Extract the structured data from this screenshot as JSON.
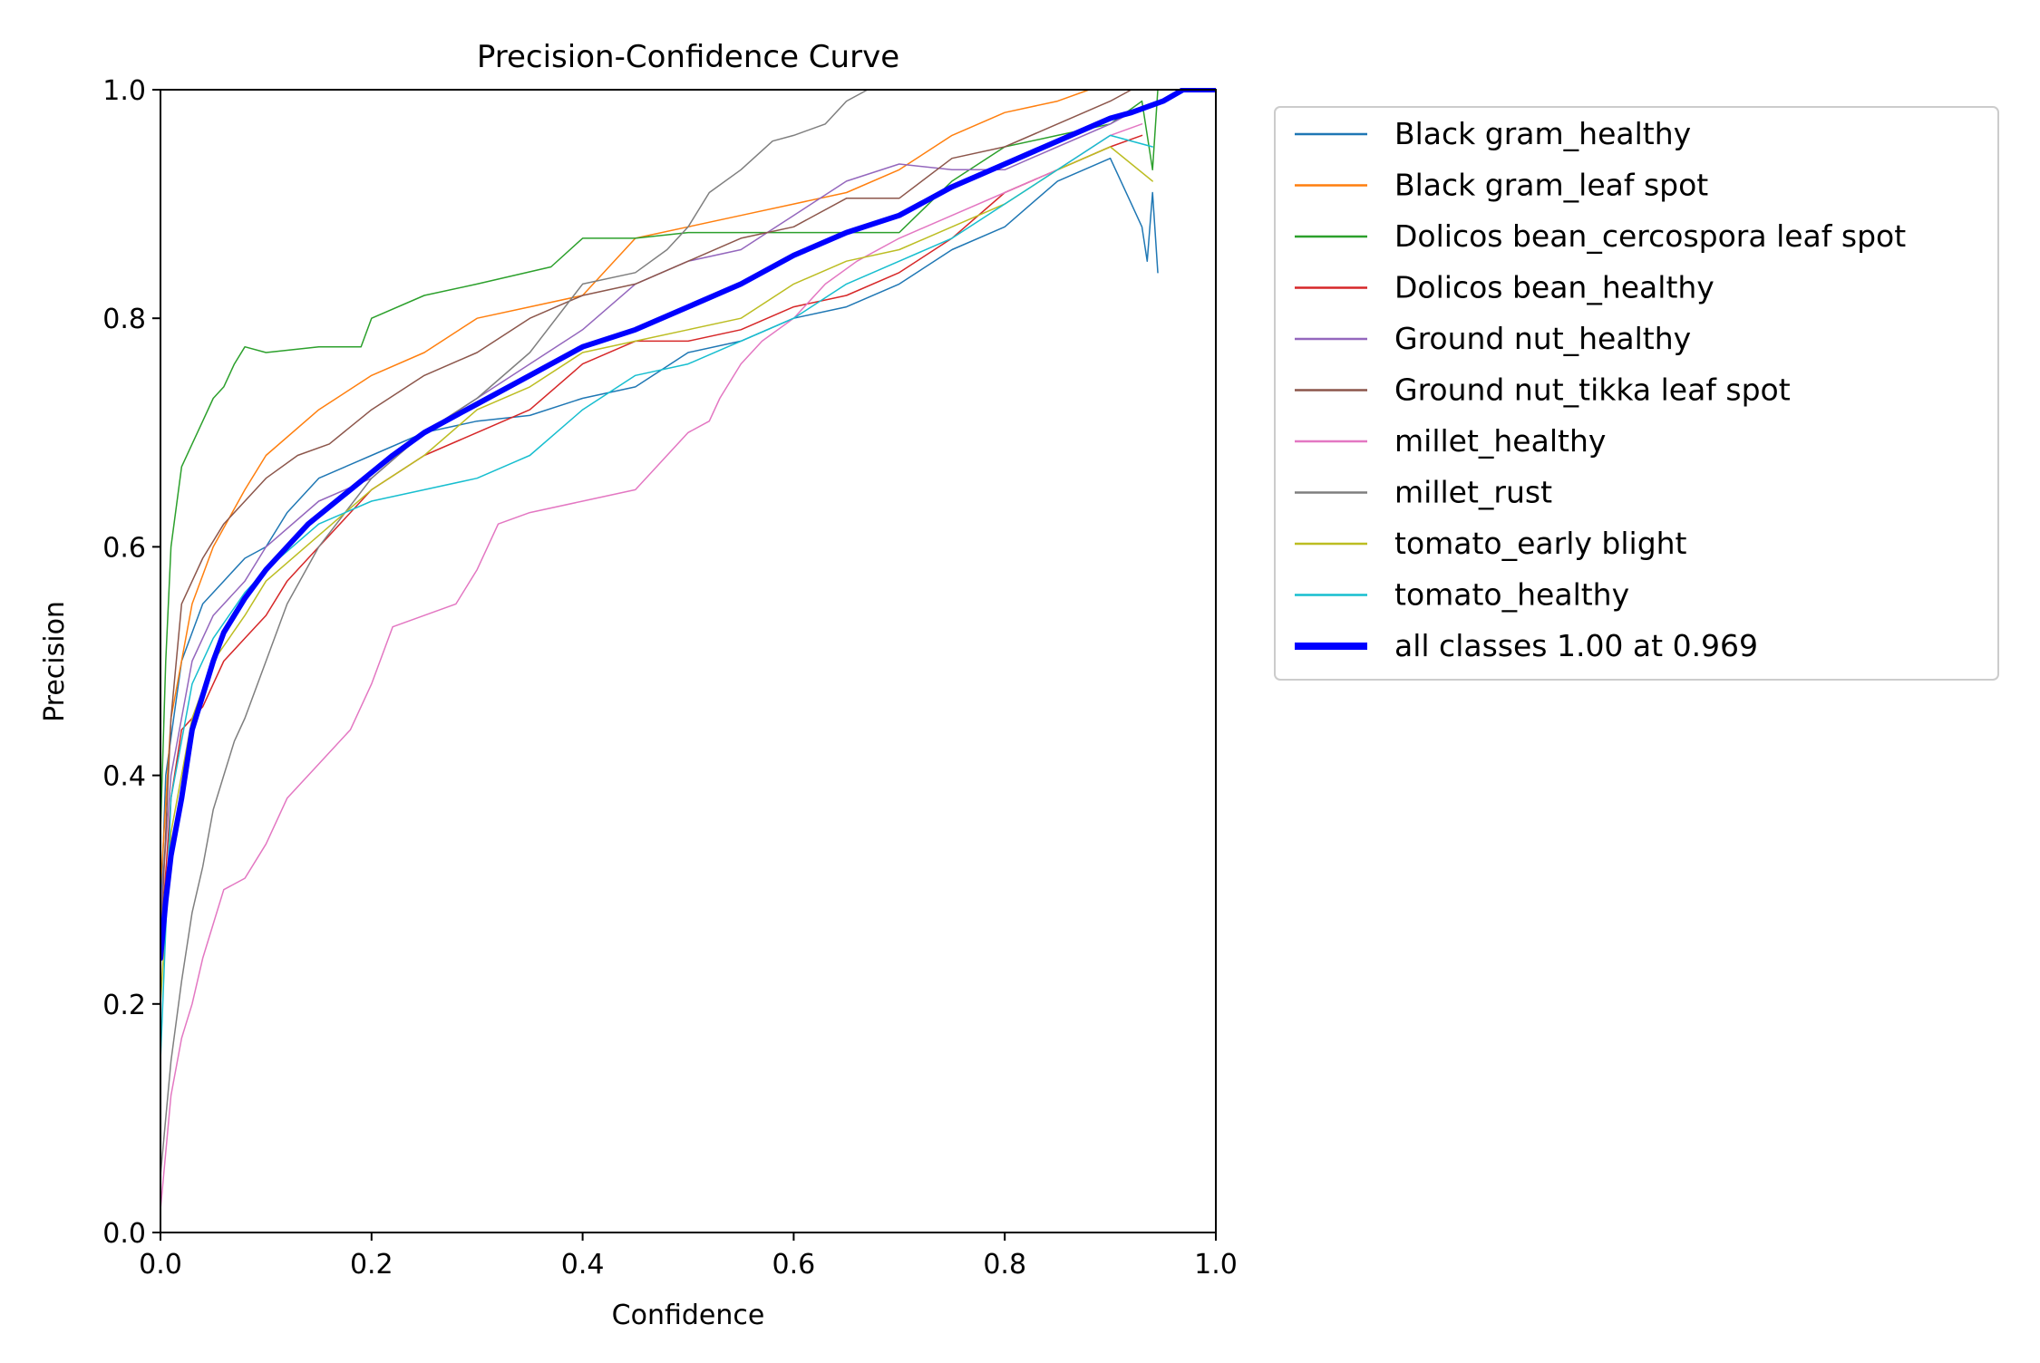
{
  "chart_data": {
    "type": "line",
    "title": "Precision-Confidence Curve",
    "xlabel": "Confidence",
    "ylabel": "Precision",
    "xlim": [
      0,
      1
    ],
    "ylim": [
      0,
      1
    ],
    "xticks": [
      "0.0",
      "0.2",
      "0.4",
      "0.6",
      "0.8",
      "1.0"
    ],
    "yticks": [
      "0.0",
      "0.2",
      "0.4",
      "0.6",
      "0.8",
      "1.0"
    ],
    "grid": false,
    "legend_position": "outside-right",
    "series": [
      {
        "name": "Black gram_healthy",
        "color": "#1f77b4",
        "width": 1.5,
        "points": [
          [
            0.0,
            0.27
          ],
          [
            0.005,
            0.4
          ],
          [
            0.02,
            0.5
          ],
          [
            0.04,
            0.55
          ],
          [
            0.06,
            0.57
          ],
          [
            0.08,
            0.59
          ],
          [
            0.1,
            0.6
          ],
          [
            0.12,
            0.63
          ],
          [
            0.15,
            0.66
          ],
          [
            0.2,
            0.68
          ],
          [
            0.25,
            0.7
          ],
          [
            0.3,
            0.71
          ],
          [
            0.35,
            0.715
          ],
          [
            0.4,
            0.73
          ],
          [
            0.45,
            0.74
          ],
          [
            0.5,
            0.77
          ],
          [
            0.55,
            0.78
          ],
          [
            0.6,
            0.8
          ],
          [
            0.65,
            0.81
          ],
          [
            0.7,
            0.83
          ],
          [
            0.75,
            0.86
          ],
          [
            0.8,
            0.88
          ],
          [
            0.85,
            0.92
          ],
          [
            0.9,
            0.94
          ],
          [
            0.92,
            0.9
          ],
          [
            0.93,
            0.88
          ],
          [
            0.935,
            0.85
          ],
          [
            0.94,
            0.91
          ],
          [
            0.945,
            0.84
          ]
        ]
      },
      {
        "name": "Black gram_leaf spot",
        "color": "#ff7f0e",
        "width": 1.5,
        "points": [
          [
            0.0,
            0.3
          ],
          [
            0.01,
            0.45
          ],
          [
            0.03,
            0.55
          ],
          [
            0.05,
            0.6
          ],
          [
            0.08,
            0.65
          ],
          [
            0.1,
            0.68
          ],
          [
            0.15,
            0.72
          ],
          [
            0.2,
            0.75
          ],
          [
            0.25,
            0.77
          ],
          [
            0.3,
            0.8
          ],
          [
            0.35,
            0.81
          ],
          [
            0.4,
            0.82
          ],
          [
            0.45,
            0.87
          ],
          [
            0.5,
            0.88
          ],
          [
            0.55,
            0.89
          ],
          [
            0.6,
            0.9
          ],
          [
            0.65,
            0.91
          ],
          [
            0.7,
            0.93
          ],
          [
            0.75,
            0.96
          ],
          [
            0.8,
            0.98
          ],
          [
            0.85,
            0.99
          ],
          [
            0.88,
            1.0
          ]
        ]
      },
      {
        "name": "Dolicos bean_cercospora leaf spot",
        "color": "#2ca02c",
        "width": 1.5,
        "points": [
          [
            0.0,
            0.35
          ],
          [
            0.005,
            0.5
          ],
          [
            0.01,
            0.6
          ],
          [
            0.02,
            0.67
          ],
          [
            0.03,
            0.69
          ],
          [
            0.04,
            0.71
          ],
          [
            0.05,
            0.73
          ],
          [
            0.06,
            0.74
          ],
          [
            0.07,
            0.76
          ],
          [
            0.08,
            0.775
          ],
          [
            0.1,
            0.77
          ],
          [
            0.15,
            0.775
          ],
          [
            0.19,
            0.775
          ],
          [
            0.2,
            0.8
          ],
          [
            0.25,
            0.82
          ],
          [
            0.3,
            0.83
          ],
          [
            0.37,
            0.845
          ],
          [
            0.4,
            0.87
          ],
          [
            0.45,
            0.87
          ],
          [
            0.5,
            0.875
          ],
          [
            0.55,
            0.875
          ],
          [
            0.6,
            0.875
          ],
          [
            0.65,
            0.875
          ],
          [
            0.7,
            0.875
          ],
          [
            0.75,
            0.92
          ],
          [
            0.8,
            0.95
          ],
          [
            0.85,
            0.96
          ],
          [
            0.9,
            0.97
          ],
          [
            0.93,
            0.99
          ],
          [
            0.94,
            0.93
          ],
          [
            0.945,
            1.0
          ]
        ]
      },
      {
        "name": "Dolicos bean_healthy",
        "color": "#d62728",
        "width": 1.5,
        "points": [
          [
            0.0,
            0.25
          ],
          [
            0.01,
            0.38
          ],
          [
            0.02,
            0.44
          ],
          [
            0.04,
            0.46
          ],
          [
            0.06,
            0.5
          ],
          [
            0.08,
            0.52
          ],
          [
            0.1,
            0.54
          ],
          [
            0.12,
            0.57
          ],
          [
            0.15,
            0.6
          ],
          [
            0.2,
            0.65
          ],
          [
            0.25,
            0.68
          ],
          [
            0.3,
            0.7
          ],
          [
            0.35,
            0.72
          ],
          [
            0.4,
            0.76
          ],
          [
            0.45,
            0.78
          ],
          [
            0.5,
            0.78
          ],
          [
            0.55,
            0.79
          ],
          [
            0.6,
            0.81
          ],
          [
            0.65,
            0.82
          ],
          [
            0.7,
            0.84
          ],
          [
            0.75,
            0.87
          ],
          [
            0.8,
            0.91
          ],
          [
            0.85,
            0.93
          ],
          [
            0.9,
            0.95
          ],
          [
            0.93,
            0.96
          ]
        ]
      },
      {
        "name": "Ground nut_healthy",
        "color": "#9467bd",
        "width": 1.5,
        "points": [
          [
            0.0,
            0.28
          ],
          [
            0.01,
            0.4
          ],
          [
            0.03,
            0.5
          ],
          [
            0.05,
            0.54
          ],
          [
            0.08,
            0.57
          ],
          [
            0.1,
            0.6
          ],
          [
            0.15,
            0.64
          ],
          [
            0.2,
            0.66
          ],
          [
            0.25,
            0.7
          ],
          [
            0.3,
            0.73
          ],
          [
            0.35,
            0.76
          ],
          [
            0.4,
            0.79
          ],
          [
            0.45,
            0.83
          ],
          [
            0.5,
            0.85
          ],
          [
            0.55,
            0.86
          ],
          [
            0.6,
            0.89
          ],
          [
            0.65,
            0.92
          ],
          [
            0.7,
            0.935
          ],
          [
            0.75,
            0.93
          ],
          [
            0.8,
            0.93
          ],
          [
            0.85,
            0.95
          ],
          [
            0.9,
            0.97
          ],
          [
            0.92,
            0.98
          ]
        ]
      },
      {
        "name": "Ground nut_tikka leaf spot",
        "color": "#8c564b",
        "width": 1.5,
        "points": [
          [
            0.0,
            0.25
          ],
          [
            0.01,
            0.45
          ],
          [
            0.02,
            0.55
          ],
          [
            0.04,
            0.59
          ],
          [
            0.06,
            0.62
          ],
          [
            0.08,
            0.64
          ],
          [
            0.1,
            0.66
          ],
          [
            0.13,
            0.68
          ],
          [
            0.16,
            0.69
          ],
          [
            0.2,
            0.72
          ],
          [
            0.25,
            0.75
          ],
          [
            0.3,
            0.77
          ],
          [
            0.35,
            0.8
          ],
          [
            0.4,
            0.82
          ],
          [
            0.45,
            0.83
          ],
          [
            0.5,
            0.85
          ],
          [
            0.55,
            0.87
          ],
          [
            0.6,
            0.88
          ],
          [
            0.65,
            0.905
          ],
          [
            0.7,
            0.905
          ],
          [
            0.75,
            0.94
          ],
          [
            0.8,
            0.95
          ],
          [
            0.85,
            0.97
          ],
          [
            0.9,
            0.99
          ],
          [
            0.92,
            1.0
          ]
        ]
      },
      {
        "name": "millet_healthy",
        "color": "#e377c2",
        "width": 1.5,
        "points": [
          [
            0.0,
            0.02
          ],
          [
            0.01,
            0.12
          ],
          [
            0.02,
            0.17
          ],
          [
            0.03,
            0.2
          ],
          [
            0.04,
            0.24
          ],
          [
            0.05,
            0.27
          ],
          [
            0.06,
            0.3
          ],
          [
            0.08,
            0.31
          ],
          [
            0.1,
            0.34
          ],
          [
            0.12,
            0.38
          ],
          [
            0.15,
            0.41
          ],
          [
            0.18,
            0.44
          ],
          [
            0.2,
            0.48
          ],
          [
            0.22,
            0.53
          ],
          [
            0.25,
            0.54
          ],
          [
            0.28,
            0.55
          ],
          [
            0.3,
            0.58
          ],
          [
            0.32,
            0.62
          ],
          [
            0.35,
            0.63
          ],
          [
            0.4,
            0.64
          ],
          [
            0.45,
            0.65
          ],
          [
            0.47,
            0.67
          ],
          [
            0.5,
            0.7
          ],
          [
            0.52,
            0.71
          ],
          [
            0.53,
            0.73
          ],
          [
            0.55,
            0.76
          ],
          [
            0.57,
            0.78
          ],
          [
            0.6,
            0.8
          ],
          [
            0.63,
            0.83
          ],
          [
            0.66,
            0.85
          ],
          [
            0.7,
            0.87
          ],
          [
            0.75,
            0.89
          ],
          [
            0.8,
            0.91
          ],
          [
            0.85,
            0.93
          ],
          [
            0.9,
            0.96
          ],
          [
            0.93,
            0.97
          ]
        ]
      },
      {
        "name": "millet_rust",
        "color": "#7f7f7f",
        "width": 1.5,
        "points": [
          [
            0.0,
            0.05
          ],
          [
            0.01,
            0.15
          ],
          [
            0.02,
            0.22
          ],
          [
            0.03,
            0.28
          ],
          [
            0.04,
            0.32
          ],
          [
            0.05,
            0.37
          ],
          [
            0.06,
            0.4
          ],
          [
            0.07,
            0.43
          ],
          [
            0.08,
            0.45
          ],
          [
            0.1,
            0.5
          ],
          [
            0.12,
            0.55
          ],
          [
            0.15,
            0.6
          ],
          [
            0.2,
            0.66
          ],
          [
            0.25,
            0.7
          ],
          [
            0.3,
            0.73
          ],
          [
            0.35,
            0.77
          ],
          [
            0.4,
            0.83
          ],
          [
            0.45,
            0.84
          ],
          [
            0.48,
            0.86
          ],
          [
            0.5,
            0.88
          ],
          [
            0.52,
            0.91
          ],
          [
            0.55,
            0.93
          ],
          [
            0.58,
            0.955
          ],
          [
            0.6,
            0.96
          ],
          [
            0.63,
            0.97
          ],
          [
            0.65,
            0.99
          ],
          [
            0.67,
            1.0
          ]
        ]
      },
      {
        "name": "tomato_early blight",
        "color": "#bcbd22",
        "width": 1.5,
        "points": [
          [
            0.0,
            0.2
          ],
          [
            0.01,
            0.35
          ],
          [
            0.03,
            0.45
          ],
          [
            0.05,
            0.5
          ],
          [
            0.08,
            0.54
          ],
          [
            0.1,
            0.57
          ],
          [
            0.15,
            0.61
          ],
          [
            0.2,
            0.65
          ],
          [
            0.25,
            0.68
          ],
          [
            0.3,
            0.72
          ],
          [
            0.35,
            0.74
          ],
          [
            0.4,
            0.77
          ],
          [
            0.45,
            0.78
          ],
          [
            0.5,
            0.79
          ],
          [
            0.55,
            0.8
          ],
          [
            0.6,
            0.83
          ],
          [
            0.65,
            0.85
          ],
          [
            0.7,
            0.86
          ],
          [
            0.75,
            0.88
          ],
          [
            0.8,
            0.9
          ],
          [
            0.85,
            0.93
          ],
          [
            0.9,
            0.95
          ],
          [
            0.94,
            0.92
          ]
        ]
      },
      {
        "name": "tomato_healthy",
        "color": "#17becf",
        "width": 1.5,
        "points": [
          [
            0.0,
            0.15
          ],
          [
            0.01,
            0.38
          ],
          [
            0.03,
            0.48
          ],
          [
            0.05,
            0.52
          ],
          [
            0.08,
            0.56
          ],
          [
            0.1,
            0.58
          ],
          [
            0.15,
            0.62
          ],
          [
            0.2,
            0.64
          ],
          [
            0.25,
            0.65
          ],
          [
            0.3,
            0.66
          ],
          [
            0.35,
            0.68
          ],
          [
            0.4,
            0.72
          ],
          [
            0.45,
            0.75
          ],
          [
            0.5,
            0.76
          ],
          [
            0.55,
            0.78
          ],
          [
            0.6,
            0.8
          ],
          [
            0.65,
            0.83
          ],
          [
            0.7,
            0.85
          ],
          [
            0.75,
            0.87
          ],
          [
            0.8,
            0.9
          ],
          [
            0.85,
            0.93
          ],
          [
            0.9,
            0.96
          ],
          [
            0.94,
            0.95
          ]
        ]
      },
      {
        "name": "all classes 1.00 at 0.969",
        "color": "#0000ff",
        "width": 6,
        "points": [
          [
            0.0,
            0.24
          ],
          [
            0.005,
            0.29
          ],
          [
            0.01,
            0.33
          ],
          [
            0.02,
            0.38
          ],
          [
            0.03,
            0.44
          ],
          [
            0.04,
            0.47
          ],
          [
            0.05,
            0.5
          ],
          [
            0.06,
            0.525
          ],
          [
            0.08,
            0.555
          ],
          [
            0.1,
            0.58
          ],
          [
            0.12,
            0.6
          ],
          [
            0.14,
            0.62
          ],
          [
            0.16,
            0.635
          ],
          [
            0.18,
            0.65
          ],
          [
            0.2,
            0.665
          ],
          [
            0.22,
            0.68
          ],
          [
            0.25,
            0.7
          ],
          [
            0.3,
            0.725
          ],
          [
            0.35,
            0.75
          ],
          [
            0.4,
            0.775
          ],
          [
            0.45,
            0.79
          ],
          [
            0.5,
            0.81
          ],
          [
            0.55,
            0.83
          ],
          [
            0.6,
            0.855
          ],
          [
            0.65,
            0.875
          ],
          [
            0.7,
            0.89
          ],
          [
            0.75,
            0.915
          ],
          [
            0.8,
            0.935
          ],
          [
            0.85,
            0.955
          ],
          [
            0.9,
            0.975
          ],
          [
            0.92,
            0.98
          ],
          [
            0.95,
            0.99
          ],
          [
            0.969,
            1.0
          ],
          [
            1.0,
            1.0
          ]
        ]
      }
    ]
  }
}
